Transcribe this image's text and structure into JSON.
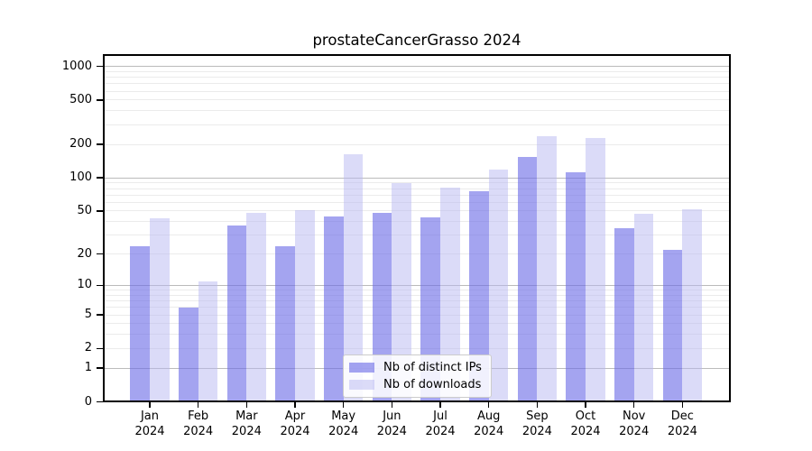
{
  "title": "prostateCancerGrasso 2024",
  "chart_data": {
    "type": "bar",
    "title": "prostateCancerGrasso 2024",
    "categories": [
      "Jan",
      "Feb",
      "Mar",
      "Apr",
      "May",
      "Jun",
      "Jul",
      "Aug",
      "Sep",
      "Oct",
      "Nov",
      "Dec"
    ],
    "year": "2024",
    "series": [
      {
        "name": "Nb of distinct IPs",
        "values": [
          24,
          6,
          37,
          24,
          45,
          49,
          44,
          77,
          155,
          114,
          35,
          22
        ],
        "color": "rgba(108,108,230,0.62)"
      },
      {
        "name": "Nb of downloads",
        "values": [
          43,
          11,
          49,
          51,
          166,
          91,
          82,
          120,
          238,
          230,
          48,
          52
        ],
        "color": "rgba(184,184,242,0.5)"
      }
    ],
    "yscale": "log10(1+x)",
    "ytick_labels": [
      1000,
      500,
      200,
      100,
      50,
      20,
      10,
      5,
      2,
      1,
      0
    ],
    "major_gridline_values": [
      1,
      10,
      100,
      1000
    ],
    "minor_gridline_values": [
      2,
      3,
      4,
      5,
      6,
      7,
      8,
      9,
      20,
      30,
      40,
      50,
      60,
      70,
      80,
      90,
      200,
      300,
      400,
      500,
      600,
      700,
      800,
      900
    ],
    "ylim": [
      0,
      1300
    ],
    "grid": true,
    "legend_position": "bottom-center"
  },
  "colors": {
    "major_grid": "#bbbbbb",
    "minor_grid": "#ebebeb",
    "spine": "#000000",
    "text": "#000000",
    "legend_border": "#cccccc"
  }
}
